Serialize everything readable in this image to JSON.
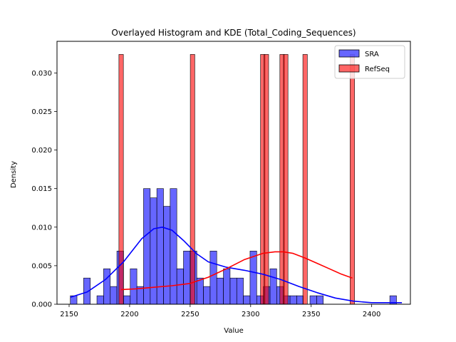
{
  "chart_data": {
    "type": "bar",
    "title": "Overlayed Histogram and KDE (Total_Coding_Sequences)",
    "xlabel": "Value",
    "ylabel": "Density",
    "xlim": [
      2140,
      2432
    ],
    "ylim": [
      0,
      0.0341
    ],
    "xticks": [
      2150,
      2200,
      2250,
      2300,
      2350,
      2400
    ],
    "yticks": [
      0.0,
      0.005,
      0.01,
      0.015,
      0.02,
      0.025,
      0.03
    ],
    "ytick_labels": [
      "0.000",
      "0.005",
      "0.010",
      "0.015",
      "0.020",
      "0.025",
      "0.030"
    ],
    "legend_position": "top-right",
    "grid": false,
    "series": [
      {
        "name": "SRA",
        "kind": "histogram",
        "color": "#0000ff",
        "fill_opacity": 0.6,
        "bin_start": 2151,
        "bin_width": 5.5,
        "values": [
          0.0011,
          0,
          0.0034,
          0,
          0.0011,
          0.0046,
          0.0023,
          0.0069,
          0.0011,
          0.0046,
          0.0023,
          0.015,
          0.0138,
          0.015,
          0.0127,
          0.015,
          0.0046,
          0.0069,
          0.0069,
          0.0034,
          0.0023,
          0.0069,
          0.0034,
          0.0046,
          0.0034,
          0.0034,
          0.0011,
          0.0069,
          0.0011,
          0.0023,
          0.0046,
          0.0023,
          0.0011,
          0.0011,
          0.0011,
          0,
          0.0011,
          0.0011,
          0,
          0,
          0,
          0,
          0,
          0,
          0,
          0,
          0,
          0,
          0.0011
        ]
      },
      {
        "name": "RefSeq",
        "kind": "histogram",
        "color": "#ff0000",
        "fill_opacity": 0.6,
        "bar_width": 3.7,
        "bars": [
          {
            "x": 2193,
            "value": 0.0324
          },
          {
            "x": 2252,
            "value": 0.0324
          },
          {
            "x": 2310,
            "value": 0.0324
          },
          {
            "x": 2313,
            "value": 0.0324
          },
          {
            "x": 2326,
            "value": 0.0324
          },
          {
            "x": 2329,
            "value": 0.0324
          },
          {
            "x": 2345,
            "value": 0.0324
          },
          {
            "x": 2384,
            "value": 0.0324
          }
        ]
      },
      {
        "name": "SRA KDE",
        "kind": "line",
        "color": "#0000ff",
        "x": [
          2151,
          2165,
          2180,
          2195,
          2210,
          2220,
          2227,
          2235,
          2245,
          2255,
          2265,
          2280,
          2295,
          2310,
          2325,
          2340,
          2355,
          2370,
          2385,
          2400,
          2415,
          2425
        ],
        "y": [
          0.0009,
          0.0016,
          0.0032,
          0.0055,
          0.0085,
          0.0098,
          0.01,
          0.0096,
          0.0082,
          0.0066,
          0.0055,
          0.0048,
          0.0044,
          0.0039,
          0.0032,
          0.0023,
          0.0015,
          0.0008,
          0.0004,
          0.0002,
          0.0002,
          0.0002
        ]
      },
      {
        "name": "RefSeq KDE",
        "kind": "line",
        "color": "#ff0000",
        "x": [
          2193,
          2205,
          2220,
          2235,
          2250,
          2265,
          2280,
          2295,
          2310,
          2320,
          2327,
          2335,
          2345,
          2355,
          2365,
          2375,
          2384
        ],
        "y": [
          0.0019,
          0.002,
          0.0022,
          0.0024,
          0.0027,
          0.0035,
          0.0046,
          0.0058,
          0.0066,
          0.0068,
          0.0068,
          0.0066,
          0.006,
          0.0053,
          0.0046,
          0.0039,
          0.0034
        ]
      }
    ]
  }
}
